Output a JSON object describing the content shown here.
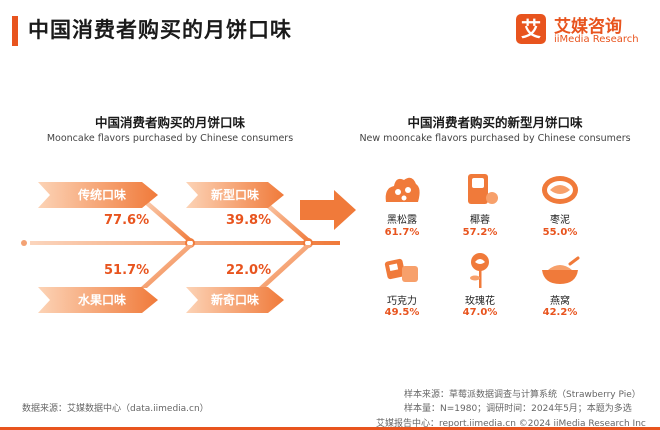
{
  "page": {
    "title": "中国消费者购买的月饼口味"
  },
  "logo": {
    "mark": "艾",
    "name_cn": "艾媒咨询",
    "name_en": "iiMedia Research"
  },
  "left_panel": {
    "title": "中国消费者购买的月饼口味",
    "subtitle": "Mooncake flavors purchased by Chinese consumers"
  },
  "right_panel": {
    "title": "中国消费者购买的新型月饼口味",
    "subtitle": "New mooncake flavors purchased by Chinese consumers"
  },
  "colors": {
    "accent": "#e8541e",
    "accent_light": "#f58a3a",
    "flag_light": "#fbc9a8"
  },
  "chart_data": [
    {
      "type": "bar",
      "title": "中国消费者购买的月饼口味",
      "subtitle": "Mooncake flavors purchased by Chinese consumers",
      "categories": [
        "传统口味",
        "新型口味",
        "水果口味",
        "新奇口味"
      ],
      "values": [
        77.6,
        39.8,
        51.7,
        22.0
      ],
      "labels": [
        "77.6%",
        "39.8%",
        "51.7%",
        "22.0%"
      ]
    },
    {
      "type": "bar",
      "title": "中国消费者购买的新型月饼口味",
      "subtitle": "New mooncake flavors purchased by Chinese consumers",
      "categories": [
        "黑松露",
        "椰蓉",
        "枣泥",
        "巧克力",
        "玫瑰花",
        "燕窝"
      ],
      "values": [
        61.7,
        57.2,
        55.0,
        49.5,
        47.0,
        42.2
      ],
      "labels": [
        "61.7%",
        "57.2%",
        "55.0%",
        "49.5%",
        "47.0%",
        "42.2%"
      ],
      "icons": [
        "truffle-icon",
        "coconut-icon",
        "date-paste-icon",
        "chocolate-icon",
        "rose-icon",
        "birds-nest-icon"
      ]
    }
  ],
  "footer": {
    "sample_source": "样本来源：草莓派数据调查与计算系统（Strawberry Pie）",
    "sample_size": "样本量：N=1980；调研时间：2024年5月；本题为多选",
    "data_source": "数据来源：艾媒数据中心（data.iimedia.cn）",
    "report_center": "艾媒报告中心：report.iimedia.cn   ©2024  iiMedia Research  Inc"
  }
}
